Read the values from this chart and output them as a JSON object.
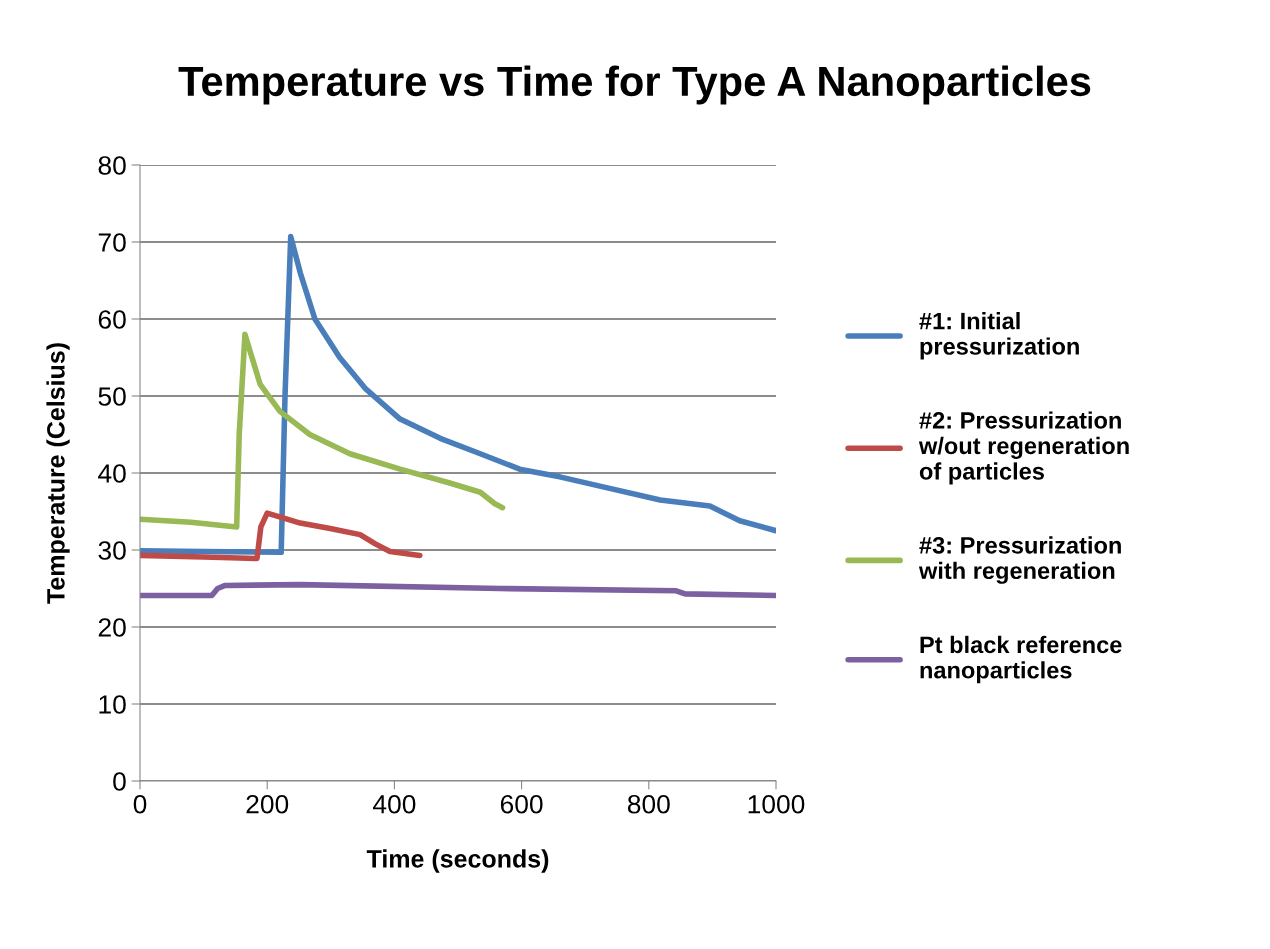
{
  "chart_data": {
    "type": "line",
    "title": "Temperature vs Time for Type A Nanoparticles",
    "xlabel": "Time (seconds)",
    "ylabel": "Temperature (Celsius)",
    "xlim": [
      0,
      1000
    ],
    "xticks": [
      0,
      200,
      400,
      600,
      800,
      1000
    ],
    "ylim": [
      0,
      80
    ],
    "yticks": [
      0,
      10,
      20,
      30,
      40,
      50,
      60,
      70,
      80
    ],
    "grid": "y",
    "legend": "right",
    "marker": "none",
    "line_style": "solid",
    "series": [
      {
        "name": "#1: Initial pressurization",
        "color": "#4a7ebb",
        "x": [
          0,
          100,
          222,
          228,
          237,
          252,
          275,
          314,
          354,
          409,
          472,
          535,
          597,
          660,
          723,
          818,
          896,
          943,
          1000
        ],
        "values": [
          29.9,
          29.8,
          29.7,
          50,
          70.7,
          66,
          60,
          55,
          51,
          47,
          44.5,
          42.5,
          40.5,
          39.5,
          38.3,
          36.5,
          35.7,
          33.8,
          32.5
        ]
      },
      {
        "name": "#2: Pressurization w/out regeneration of particles",
        "color": "#be4b48",
        "x": [
          0,
          100,
          184,
          190,
          200,
          252,
          299,
          346,
          370,
          393,
          440
        ],
        "values": [
          29.3,
          29.1,
          28.9,
          33,
          34.8,
          33.5,
          32.8,
          32,
          30.8,
          29.8,
          29.3
        ]
      },
      {
        "name": "#3: Pressurization with regeneration",
        "color": "#98b954",
        "x": [
          0,
          80,
          152,
          156,
          165,
          189,
          220,
          267,
          330,
          409,
          487,
          535,
          558,
          570
        ],
        "values": [
          34,
          33.6,
          33,
          45,
          58,
          51.5,
          48,
          45,
          42.5,
          40.5,
          38.7,
          37.5,
          36,
          35.5
        ]
      },
      {
        "name": "Pt black reference nanoparticles",
        "color": "#7d60a0",
        "x": [
          0,
          113,
          122,
          134,
          252,
          566,
          843,
          857,
          1000
        ],
        "values": [
          24.1,
          24.1,
          25,
          25.4,
          25.5,
          25,
          24.7,
          24.3,
          24.1
        ]
      }
    ]
  }
}
